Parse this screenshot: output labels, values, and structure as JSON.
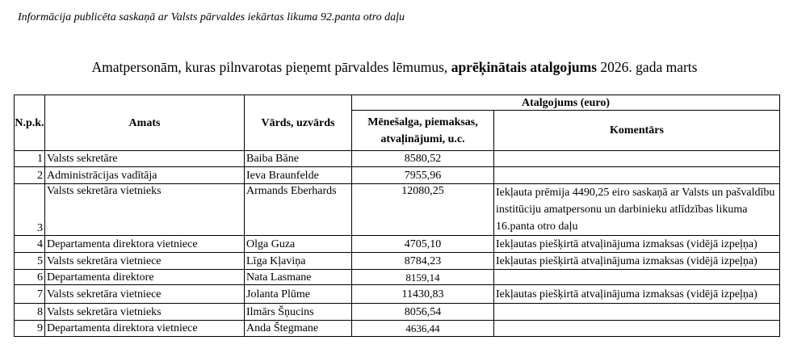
{
  "note": "Informācija publicēta saskaņā ar Valsts pārvaldes iekārtas likuma 92.panta otro daļu",
  "title": {
    "before": "Amatpersonām, kuras pilnvarotas pieņemt pārvaldes lēmumus, ",
    "bold": "aprēķinātais atalgojums",
    "after": " 2026. gada marts"
  },
  "table": {
    "headers": {
      "npk": "N.p.k.",
      "amats": "Amats",
      "vards": "Vārds, uzvārds",
      "group": "Atalgojums (euro)",
      "alga": "Mēnešalga, piemaksas, atvaļinājumi, u.c.",
      "komentars": "Komentārs"
    },
    "rows": [
      {
        "n": "1",
        "amats": "Valsts  sekretāre",
        "vards": "Baiba Bāne",
        "alga": "8580,52",
        "komentars": ""
      },
      {
        "n": "2",
        "amats": "Administrācijas vadītāja",
        "vards": "Ieva Braunfelde",
        "alga": "7955,96",
        "komentars": ""
      },
      {
        "n": "3",
        "amats": "Valsts sekretāra vietnieks",
        "vards": "Armands Eberhards",
        "alga": "12080,25",
        "komentars": "Iekļauta prēmija 4490,25 eiro saskaņā ar Valsts un pašvaldību institūciju amatpersonu un darbinieku atlīdzības likuma 16.panta otro daļu"
      },
      {
        "n": "4",
        "amats": " Departamenta direktora vietniece",
        "vards": "Olga Guza",
        "alga": "4705,10",
        "komentars": "Iekļautas piešķirtā atvaļinājuma izmaksas (vidējā izpeļņa)"
      },
      {
        "n": "5",
        "amats": "Valsts sekretāra vietniece",
        "vards": "Līga Kļaviņa",
        "alga": "8784,23",
        "komentars": "Iekļautas piešķirtā atvaļinājuma izmaksas (vidējā izpeļņa)"
      },
      {
        "n": "6",
        "amats": " Departamenta direktore",
        "vards": "Nata Lasmane",
        "alga": "8159,14",
        "komentars": ""
      },
      {
        "n": "7",
        "amats": "Valsts sekretāra vietniece",
        "vards": "Jolanta Plūme",
        "alga": "11430,83",
        "komentars": "Iekļautas piešķirtā atvaļinājuma izmaksas (vidējā izpeļņa)"
      },
      {
        "n": "8",
        "amats": "Valsts sekretāra vietnieks",
        "vards": "Ilmārs Šņucins",
        "alga": "8056,54",
        "komentars": ""
      },
      {
        "n": "9",
        "amats": " Departamenta direktora vietniece",
        "vards": "Anda Štegmane",
        "alga": "4636,44",
        "komentars": ""
      }
    ]
  }
}
